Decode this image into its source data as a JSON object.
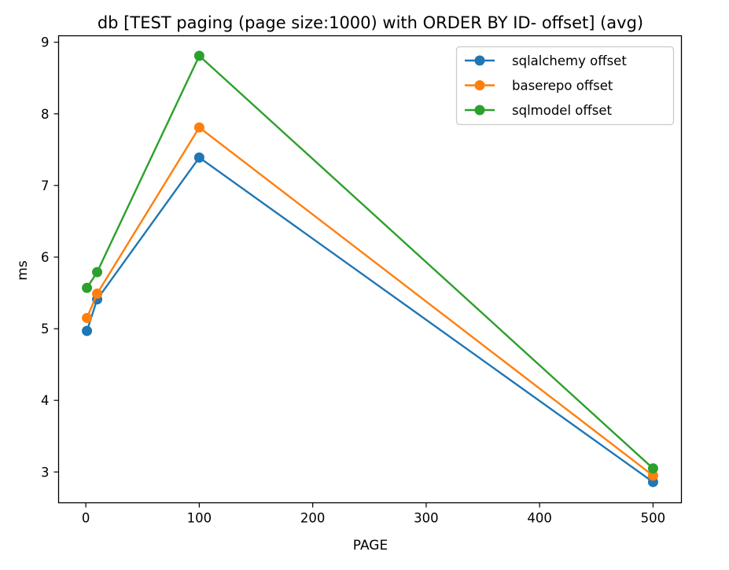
{
  "chart_data": {
    "type": "line",
    "title": "db [TEST paging (page size:1000) with ORDER BY ID- offset] (avg)",
    "xlabel": "PAGE",
    "ylabel": "ms",
    "x": [
      1,
      10,
      100,
      500
    ],
    "xlim": [
      -24,
      525
    ],
    "ylim": [
      2.57,
      9.09
    ],
    "xticks": [
      0,
      100,
      200,
      300,
      400,
      500
    ],
    "yticks": [
      3,
      4,
      5,
      6,
      7,
      8,
      9
    ],
    "grid": false,
    "legend_position": "upper right",
    "series": [
      {
        "name": "sqlalchemy offset",
        "color": "#1f77b4",
        "values": [
          4.97,
          5.41,
          7.39,
          2.86
        ]
      },
      {
        "name": "baserepo offset",
        "color": "#ff7f0e",
        "values": [
          5.15,
          5.49,
          7.81,
          2.95
        ]
      },
      {
        "name": "sqlmodel offset",
        "color": "#2ca02c",
        "values": [
          5.57,
          5.79,
          8.81,
          3.05
        ]
      }
    ]
  }
}
